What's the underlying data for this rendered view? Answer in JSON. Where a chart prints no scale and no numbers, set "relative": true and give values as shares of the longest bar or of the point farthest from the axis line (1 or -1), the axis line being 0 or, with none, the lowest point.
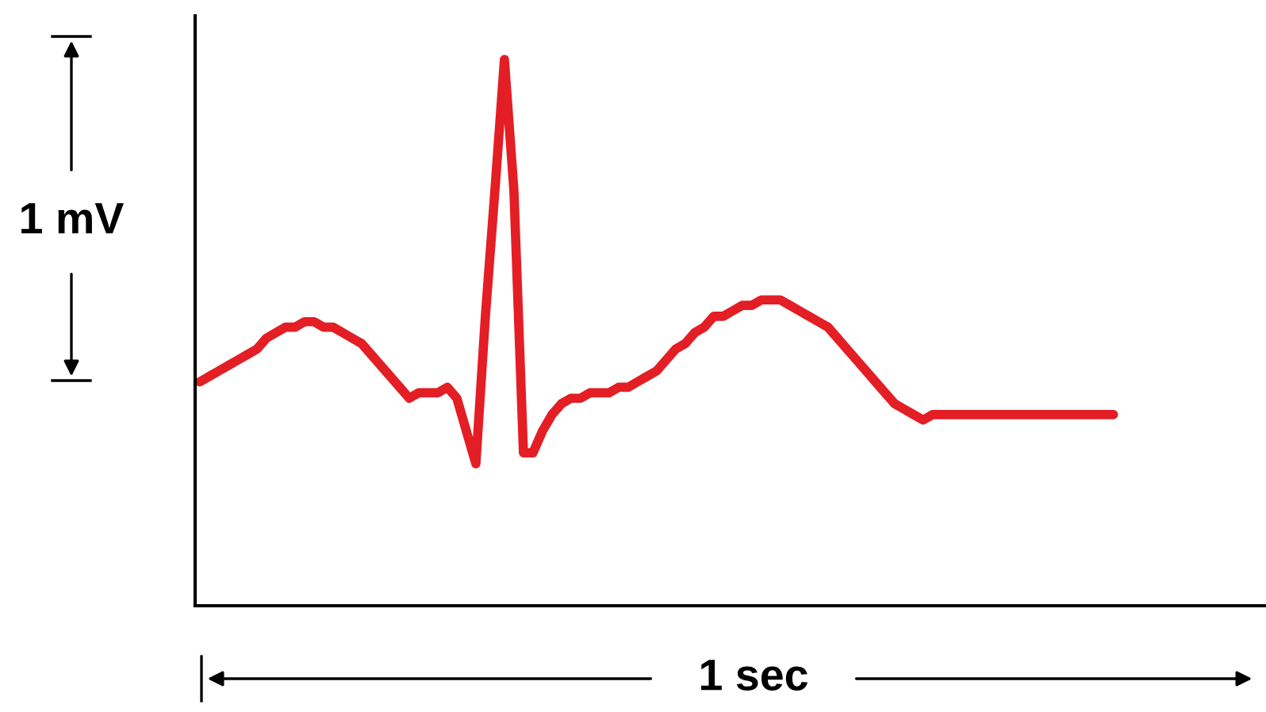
{
  "chart_data": {
    "type": "line",
    "relative": true,
    "marker": "none",
    "line_style": "solid",
    "annotations": [
      "1 mV",
      "1 sec"
    ],
    "categories": [
      null,
      null,
      null,
      null,
      null,
      null,
      null,
      null,
      null,
      null,
      null,
      null,
      null,
      null,
      null,
      null,
      null,
      null,
      null,
      null,
      null,
      null,
      null,
      null,
      null,
      null,
      null,
      null,
      null,
      null,
      null,
      null,
      null,
      null,
      null,
      null,
      null,
      null,
      null,
      null,
      null,
      null,
      null,
      null,
      null,
      null,
      null,
      null,
      null,
      null,
      null,
      null,
      null,
      null,
      null,
      null,
      null,
      null,
      null,
      null,
      null,
      null,
      null,
      null,
      null,
      null,
      null,
      null,
      null,
      null,
      null,
      null,
      null,
      null,
      null,
      null,
      null,
      null,
      null,
      null,
      null,
      null,
      null,
      null,
      null,
      null,
      null,
      null,
      null,
      null,
      null,
      null,
      null,
      null,
      null,
      null,
      null
    ],
    "series": [
      {
        "color": "#e31e24",
        "values": [
          0.41,
          0.42,
          0.43,
          0.44,
          0.45,
          0.46,
          0.47,
          0.49,
          0.5,
          0.51,
          0.51,
          0.52,
          0.52,
          0.51,
          0.51,
          0.5,
          0.49,
          0.48,
          0.46,
          0.44,
          0.42,
          0.4,
          0.38,
          0.39,
          0.39,
          0.39,
          0.4,
          0.38,
          0.32,
          0.26,
          0.53,
          0.76,
          1,
          0.76,
          0.28,
          0.28,
          0.32,
          0.35,
          0.37,
          0.38,
          0.38,
          0.39,
          0.39,
          0.39,
          0.4,
          0.4,
          0.41,
          0.42,
          0.43,
          0.45,
          0.47,
          0.48,
          0.5,
          0.51,
          0.53,
          0.53,
          0.54,
          0.55,
          0.55,
          0.56,
          0.56,
          0.56,
          0.55,
          0.54,
          0.53,
          0.52,
          0.51,
          0.49,
          0.47,
          0.45,
          0.43,
          0.41,
          0.39,
          0.37,
          0.36,
          0.35,
          0.34,
          0.35,
          0.35,
          0.35,
          0.35,
          0.35,
          0.35,
          0.35,
          0.35,
          0.35,
          0.35,
          0.35,
          0.35,
          0.35,
          0.35,
          0.35,
          0.35,
          0.35,
          0.35,
          0.35,
          0.35
        ]
      }
    ]
  }
}
